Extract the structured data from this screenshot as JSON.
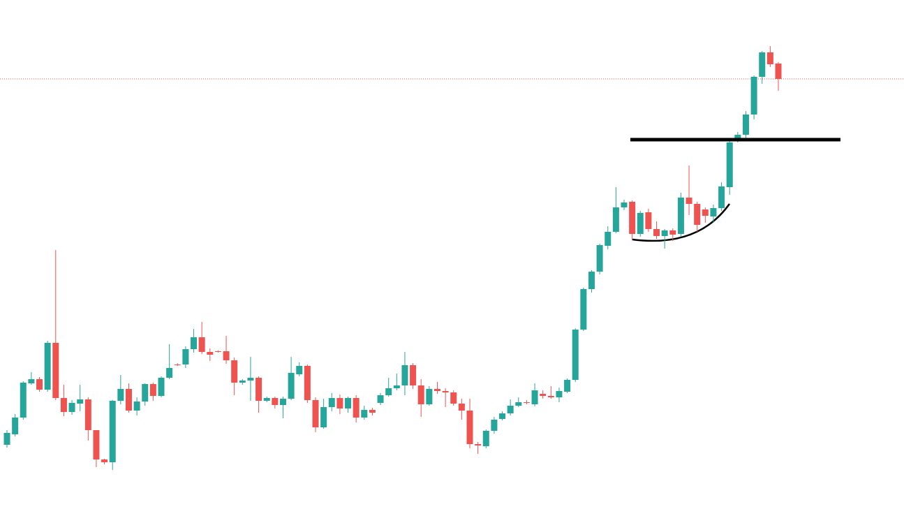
{
  "chart_data": {
    "type": "candlestick",
    "categories": [
      null,
      null,
      null,
      null,
      null,
      null,
      null,
      null,
      null,
      null,
      null,
      null,
      null,
      null,
      null,
      null,
      null,
      null,
      null,
      null,
      null,
      null,
      null,
      null,
      null,
      null,
      null,
      null,
      null,
      null,
      null,
      null,
      null,
      null,
      null,
      null,
      null,
      null,
      null,
      null,
      null,
      null,
      null,
      null,
      null,
      null,
      null,
      null,
      null,
      null,
      null,
      null,
      null,
      null,
      null,
      null,
      null,
      null,
      null,
      null,
      null,
      null,
      null,
      null,
      null,
      null,
      null,
      null,
      null,
      null,
      null,
      null,
      null,
      null,
      null,
      null,
      null,
      null,
      null,
      null,
      null,
      null,
      null,
      null,
      null,
      null,
      null,
      null,
      null,
      null,
      null,
      null,
      null,
      null,
      null,
      null
    ],
    "open": [
      112,
      127,
      151,
      200,
      206,
      191,
      258,
      179,
      159,
      171,
      177,
      133,
      91,
      87,
      175,
      192,
      161,
      174,
      199,
      182,
      208,
      227,
      227,
      249,
      266,
      245,
      246,
      246,
      233,
      201,
      204,
      208,
      175,
      179,
      169,
      178,
      213,
      225,
      176,
      137,
      166,
      179,
      164,
      179,
      151,
      162,
      172,
      183,
      193,
      197,
      226,
      197,
      170,
      192,
      189,
      187,
      171,
      161,
      113,
      110,
      132,
      149,
      157,
      168,
      173,
      170,
      185,
      182,
      180,
      188,
      205,
      277,
      335,
      360,
      397,
      417,
      452,
      460,
      414,
      445,
      421,
      411,
      419,
      414,
      466,
      457,
      449,
      439,
      451,
      481,
      549,
      556,
      585,
      639,
      674,
      658
    ],
    "high": [
      133,
      156,
      203,
      216,
      209,
      261,
      391,
      198,
      176,
      198,
      180,
      133,
      92,
      176,
      212,
      200,
      180,
      200,
      201,
      210,
      256,
      229,
      253,
      278,
      288,
      250,
      247,
      268,
      237,
      206,
      238,
      210,
      181,
      181,
      181,
      238,
      230,
      227,
      180,
      178,
      186,
      184,
      181,
      183,
      168,
      165,
      186,
      208,
      214,
      245,
      229,
      206,
      196,
      202,
      193,
      190,
      178,
      178,
      116,
      134,
      152,
      160,
      177,
      180,
      176,
      200,
      190,
      196,
      194,
      207,
      279,
      337,
      362,
      400,
      425,
      481,
      463,
      462,
      447,
      450,
      432,
      421,
      422,
      473,
      512,
      460,
      452,
      456,
      488,
      547,
      560,
      590,
      641,
      676,
      683,
      660
    ],
    "low": [
      108,
      124,
      148,
      198,
      188,
      188,
      176,
      153,
      155,
      160,
      118,
      80,
      84,
      76,
      170,
      158,
      154,
      168,
      175,
      180,
      206,
      225,
      222,
      244,
      242,
      232,
      244,
      228,
      183,
      198,
      175,
      158,
      173,
      164,
      150,
      176,
      210,
      172,
      130,
      135,
      160,
      156,
      158,
      144,
      148,
      154,
      169,
      181,
      190,
      183,
      192,
      152,
      168,
      185,
      166,
      168,
      148,
      107,
      99,
      107,
      128,
      147,
      154,
      166,
      170,
      167,
      178,
      178,
      173,
      186,
      202,
      275,
      330,
      356,
      392,
      415,
      448,
      405,
      410,
      417,
      407,
      393,
      404,
      410,
      441,
      417,
      430,
      430,
      447,
      470,
      545,
      549,
      578,
      629,
      653,
      619
    ],
    "close": [
      129,
      151,
      201,
      206,
      191,
      258,
      179,
      159,
      172,
      177,
      133,
      91,
      87,
      175,
      192,
      161,
      174,
      199,
      182,
      208,
      222,
      226,
      249,
      266,
      245,
      241,
      245,
      233,
      201,
      204,
      208,
      175,
      179,
      169,
      178,
      215,
      225,
      176,
      137,
      166,
      179,
      164,
      179,
      151,
      162,
      158,
      183,
      193,
      197,
      226,
      197,
      170,
      192,
      189,
      187,
      171,
      161,
      113,
      111,
      132,
      148,
      157,
      168,
      173,
      172,
      190,
      182,
      180,
      189,
      205,
      277,
      335,
      360,
      398,
      417,
      452,
      459,
      414,
      444,
      421,
      411,
      419,
      413,
      466,
      457,
      427,
      440,
      451,
      482,
      545,
      556,
      585,
      639,
      674,
      657,
      636
    ],
    "up_color": "#26a69a",
    "down_color": "#ef5350",
    "ylim": [
      0,
      749
    ],
    "resistance": 549
  }
}
